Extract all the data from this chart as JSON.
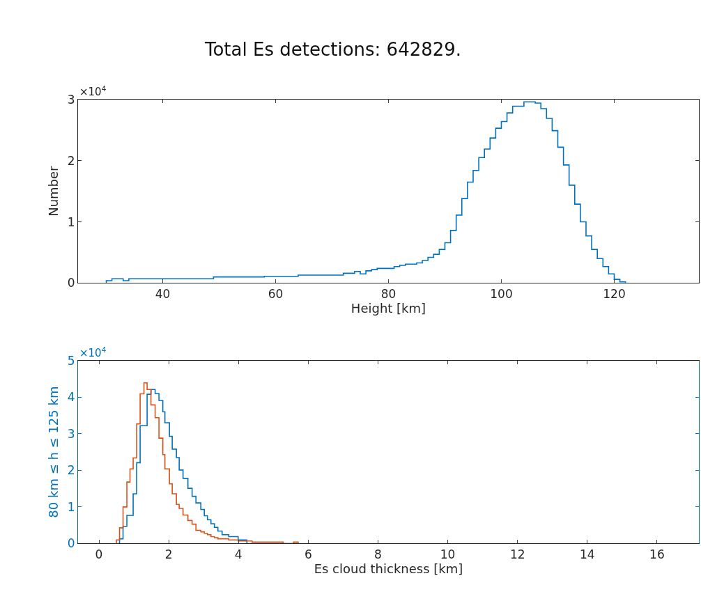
{
  "chart_data": [
    {
      "type": "histogram",
      "title": "Total Es detections: 642829.",
      "xlabel": "Height [km]",
      "ylabel": "Number",
      "annotations": [
        "×10$^{4}$"
      ],
      "bins": [
        30,
        31,
        33,
        34,
        49,
        58,
        64,
        72,
        74,
        75,
        76,
        77,
        78,
        81,
        82,
        83,
        85,
        86,
        87,
        88,
        89,
        90,
        91,
        92,
        93,
        94,
        95,
        96,
        97,
        98,
        99,
        100,
        101,
        102,
        104,
        106,
        107,
        108,
        109,
        110,
        111,
        112,
        113,
        114,
        115,
        116,
        117,
        118,
        119,
        120,
        121,
        122
      ],
      "values": [
        0.04,
        0.07,
        0.04,
        0.07,
        0.1,
        0.11,
        0.13,
        0.16,
        0.19,
        0.15,
        0.2,
        0.22,
        0.24,
        0.27,
        0.29,
        0.31,
        0.33,
        0.37,
        0.42,
        0.47,
        0.55,
        0.66,
        0.86,
        1.11,
        1.38,
        1.65,
        1.84,
        2.05,
        2.19,
        2.37,
        2.53,
        2.64,
        2.78,
        2.89,
        2.96,
        2.94,
        2.85,
        2.69,
        2.49,
        2.22,
        1.93,
        1.6,
        1.29,
        1.0,
        0.77,
        0.55,
        0.4,
        0.27,
        0.15,
        0.06,
        0.02
      ],
      "color": "#0072bd",
      "xlim": [
        25,
        135
      ],
      "xticks": [
        40,
        60,
        80,
        100,
        120
      ],
      "ylim": [
        0,
        3
      ],
      "yticks": [
        0,
        1,
        2,
        3
      ]
    },
    {
      "type": "histogram",
      "xlabel": "Es cloud thickness [km]",
      "ylabel": "80 km ≤ h ≤ 125 km",
      "annotations": [
        "×10$^{4}$"
      ],
      "bins": [
        0.5,
        0.59,
        0.69,
        0.8,
        0.89,
        0.98,
        1.08,
        1.18,
        1.29,
        1.38,
        1.49,
        1.61,
        1.72,
        1.83,
        1.89,
        2.02,
        2.1,
        2.22,
        2.3,
        2.41,
        2.55,
        2.67,
        2.78,
        2.92,
        3.02,
        3.11,
        3.21,
        3.31,
        3.41,
        3.53,
        3.72,
        3.99,
        4.24,
        4.39,
        5.28,
        5.58,
        5.71
      ],
      "series": [
        {
          "color": "#0072bd",
          "values": [
            0,
            0.13,
            0.47,
            0.77,
            0.77,
            1.36,
            2.21,
            3.22,
            3.22,
            4.08,
            4.21,
            4.1,
            3.91,
            3.6,
            3.3,
            2.93,
            2.58,
            2.35,
            2.01,
            1.78,
            1.51,
            1.29,
            1.11,
            0.93,
            0.76,
            0.65,
            0.54,
            0.44,
            0.34,
            0.24,
            0.19,
            0.1,
            0,
            0,
            0,
            0
          ]
        },
        {
          "color": "#d95319",
          "values": [
            0.1,
            0.43,
            1.0,
            1.68,
            2.04,
            2.34,
            3.27,
            4.09,
            4.39,
            4.21,
            3.79,
            3.44,
            2.88,
            2.43,
            2.04,
            1.63,
            1.36,
            1.07,
            0.96,
            0.78,
            0.63,
            0.53,
            0.36,
            0.32,
            0.28,
            0.24,
            0.19,
            0.16,
            0.13,
            0.13,
            0.1,
            0.07,
            0.07,
            0.04,
            0,
            0.04
          ]
        }
      ],
      "xlim": [
        -0.6,
        17.2
      ],
      "xticks": [
        0,
        2,
        4,
        6,
        8,
        10,
        12,
        14,
        16
      ],
      "ylim": [
        0,
        5
      ],
      "yticks": [
        0,
        1,
        2,
        3,
        4,
        5
      ]
    }
  ]
}
